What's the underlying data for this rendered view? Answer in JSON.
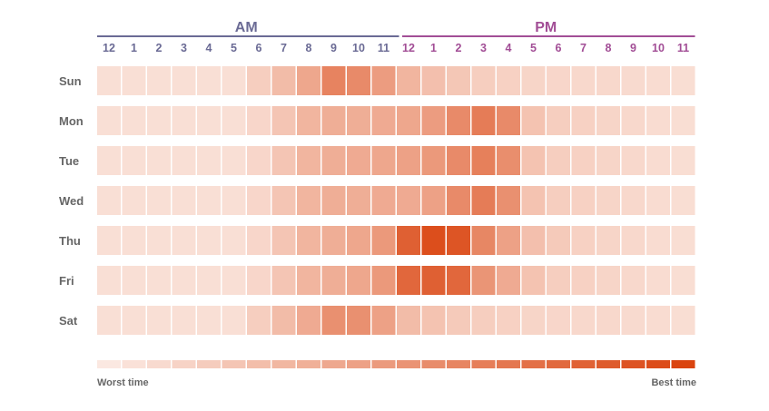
{
  "chart_data": {
    "type": "heatmap",
    "periods": [
      {
        "label": "AM",
        "color": "#6b6b95"
      },
      {
        "label": "PM",
        "color": "#a24e96"
      }
    ],
    "hours": [
      "12",
      "1",
      "2",
      "3",
      "4",
      "5",
      "6",
      "7",
      "8",
      "9",
      "10",
      "11",
      "12",
      "1",
      "2",
      "3",
      "4",
      "5",
      "6",
      "7",
      "8",
      "9",
      "10",
      "11"
    ],
    "days": [
      "Sun",
      "Mon",
      "Tue",
      "Wed",
      "Thu",
      "Fri",
      "Sat"
    ],
    "values": [
      [
        0.1,
        0.1,
        0.1,
        0.1,
        0.1,
        0.1,
        0.2,
        0.3,
        0.42,
        0.62,
        0.58,
        0.48,
        0.34,
        0.28,
        0.24,
        0.2,
        0.18,
        0.16,
        0.15,
        0.14,
        0.14,
        0.13,
        0.12,
        0.11
      ],
      [
        0.1,
        0.1,
        0.1,
        0.1,
        0.1,
        0.1,
        0.15,
        0.25,
        0.34,
        0.38,
        0.38,
        0.4,
        0.42,
        0.48,
        0.58,
        0.66,
        0.58,
        0.26,
        0.2,
        0.18,
        0.16,
        0.14,
        0.12,
        0.11
      ],
      [
        0.1,
        0.1,
        0.1,
        0.1,
        0.1,
        0.1,
        0.15,
        0.25,
        0.34,
        0.38,
        0.4,
        0.42,
        0.45,
        0.5,
        0.58,
        0.64,
        0.56,
        0.26,
        0.2,
        0.18,
        0.16,
        0.14,
        0.12,
        0.11
      ],
      [
        0.1,
        0.1,
        0.1,
        0.1,
        0.1,
        0.1,
        0.15,
        0.25,
        0.34,
        0.38,
        0.38,
        0.4,
        0.4,
        0.45,
        0.58,
        0.66,
        0.55,
        0.26,
        0.2,
        0.18,
        0.16,
        0.14,
        0.12,
        0.11
      ],
      [
        0.1,
        0.1,
        0.1,
        0.1,
        0.1,
        0.1,
        0.15,
        0.25,
        0.34,
        0.38,
        0.42,
        0.5,
        0.82,
        0.92,
        0.88,
        0.6,
        0.45,
        0.28,
        0.22,
        0.18,
        0.16,
        0.14,
        0.12,
        0.11
      ],
      [
        0.1,
        0.1,
        0.1,
        0.1,
        0.1,
        0.1,
        0.15,
        0.25,
        0.34,
        0.38,
        0.42,
        0.5,
        0.78,
        0.82,
        0.78,
        0.52,
        0.4,
        0.26,
        0.2,
        0.18,
        0.16,
        0.14,
        0.12,
        0.11
      ],
      [
        0.1,
        0.1,
        0.1,
        0.1,
        0.1,
        0.1,
        0.2,
        0.3,
        0.4,
        0.55,
        0.55,
        0.45,
        0.3,
        0.26,
        0.22,
        0.2,
        0.18,
        0.16,
        0.15,
        0.14,
        0.14,
        0.13,
        0.12,
        0.11
      ]
    ],
    "scale_steps": [
      0.05,
      0.09,
      0.13,
      0.17,
      0.21,
      0.25,
      0.29,
      0.33,
      0.37,
      0.41,
      0.45,
      0.49,
      0.53,
      0.57,
      0.61,
      0.65,
      0.69,
      0.73,
      0.77,
      0.81,
      0.85,
      0.89,
      0.93,
      0.98
    ],
    "scale_min_label": "Worst time",
    "scale_max_label": "Best time",
    "color_low": "#fdf1ec",
    "color_high": "#d9400a"
  }
}
